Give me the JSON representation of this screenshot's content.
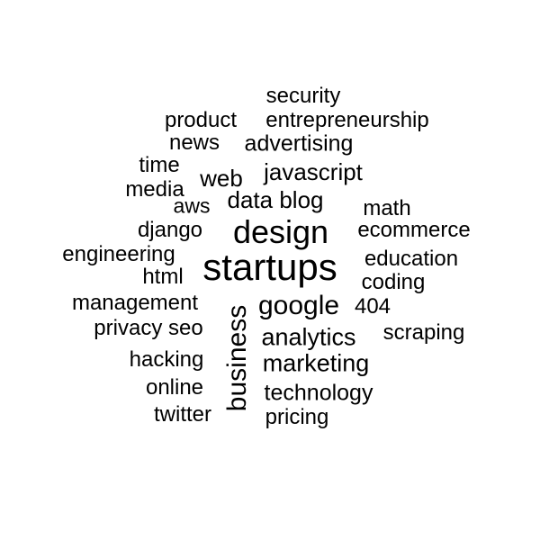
{
  "words": {
    "startups": "startups",
    "design": "design",
    "business": "business",
    "google": "google",
    "analytics": "analytics",
    "marketing": "marketing",
    "technology": "technology",
    "javascript": "javascript",
    "data_blog": "data blog",
    "web": "web",
    "advertising": "advertising",
    "entrepreneurship": "entrepreneurship",
    "security": "security",
    "product": "product",
    "news": "news",
    "time": "time",
    "media": "media",
    "aws": "aws",
    "math": "math",
    "django": "django",
    "ecommerce": "ecommerce",
    "engineering": "engineering",
    "education": "education",
    "html": "html",
    "coding": "coding",
    "management": "management",
    "n404": "404",
    "privacy_seo": "privacy seo",
    "scraping": "scraping",
    "hacking": "hacking",
    "online": "online",
    "twitter": "twitter",
    "pricing": "pricing"
  },
  "colors": {
    "text": "#000000",
    "background": "#ffffff"
  }
}
